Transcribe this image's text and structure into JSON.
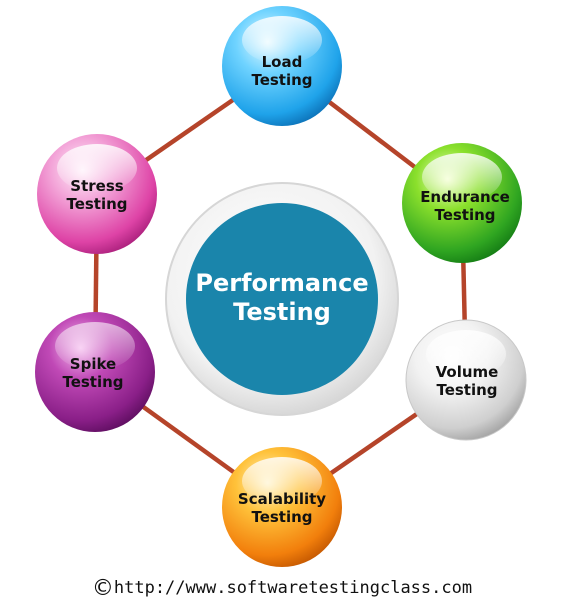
{
  "center": {
    "line1": "Performance",
    "line2": "Testing"
  },
  "nodes": [
    {
      "id": "load",
      "line1": "Load",
      "line2": "Testing",
      "color": "#21a8ee"
    },
    {
      "id": "endurance",
      "line1": "Endurance",
      "line2": "Testing",
      "color": "#35b52a"
    },
    {
      "id": "volume",
      "line1": "Volume",
      "line2": "Testing",
      "color": "#cfcfcf"
    },
    {
      "id": "scalability",
      "line1": "Scalability",
      "line2": "Testing",
      "color": "#f2820c"
    },
    {
      "id": "spike",
      "line1": "Spike",
      "line2": "Testing",
      "color": "#8c1f8c"
    },
    {
      "id": "stress",
      "line1": "Stress",
      "line2": "Testing",
      "color": "#e04aa8"
    }
  ],
  "colors": {
    "connector": "#b5442a",
    "center_fill": "#1a85ab",
    "ring": "#dcdcdc"
  },
  "footer": {
    "symbol": "©",
    "url": "http://www.softwaretestingclass.com"
  }
}
